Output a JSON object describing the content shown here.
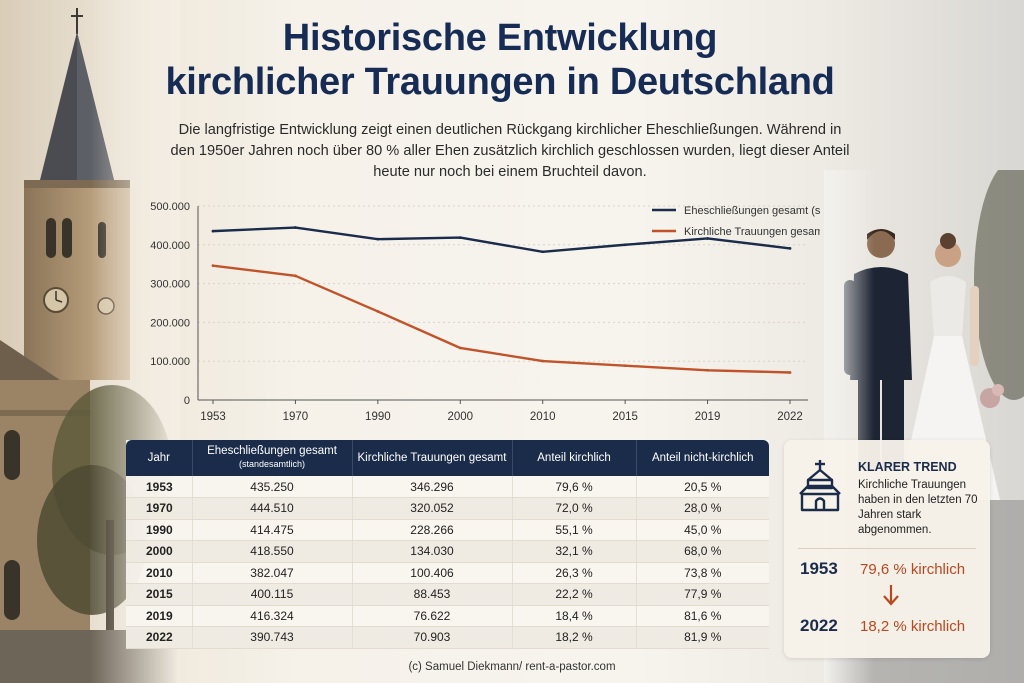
{
  "header": {
    "title_line1": "Historische Entwicklung",
    "title_line2": "kirchlicher Trauungen in Deutschland",
    "subtitle": "Die langfristige Entwicklung zeigt einen deutlichen Rückgang kirchlicher Eheschließungen. Während in den 1950er Jahren noch über 80 % aller Ehen zusätzlich kirchlich geschlossen wurden, liegt dieser Anteil heute nur noch bei einem Bruchteil davon."
  },
  "chart_data": {
    "type": "line",
    "x": [
      "1953",
      "1970",
      "1990",
      "2000",
      "2010",
      "2015",
      "2019",
      "2022"
    ],
    "series": [
      {
        "name": "Eheschließungen gesamt (standesamtlich)",
        "color": "#1b2c4b",
        "values": [
          435250,
          444510,
          414475,
          418550,
          382047,
          400115,
          416324,
          390743
        ]
      },
      {
        "name": "Kirchliche Trauungen gesamt",
        "color": "#c0532a",
        "values": [
          346296,
          320052,
          228266,
          134030,
          100406,
          88453,
          76622,
          70903
        ]
      }
    ],
    "ylim": [
      0,
      500000
    ],
    "yticks": [
      "500.000",
      "400.000",
      "300.000",
      "200.000",
      "100.000",
      "0"
    ],
    "grid": true,
    "legend": "top-right"
  },
  "table": {
    "headers": {
      "year": "Jahr",
      "total": "Eheschließungen gesamt",
      "total_note": "(standesamtlich)",
      "church": "Kirchliche Trauungen gesamt",
      "share_church": "Anteil kirchlich",
      "share_non_church": "Anteil nicht-kirchlich"
    },
    "rows": [
      {
        "year": "1953",
        "total": "435.250",
        "church": "346.296",
        "share": "79,6 %",
        "non": "20,5 %"
      },
      {
        "year": "1970",
        "total": "444.510",
        "church": "320.052",
        "share": "72,0 %",
        "non": "28,0 %"
      },
      {
        "year": "1990",
        "total": "414.475",
        "church": "228.266",
        "share": "55,1 %",
        "non": "45,0 %"
      },
      {
        "year": "2000",
        "total": "418.550",
        "church": "134.030",
        "share": "32,1 %",
        "non": "68,0 %"
      },
      {
        "year": "2010",
        "total": "382.047",
        "church": "100.406",
        "share": "26,3 %",
        "non": "73,8 %"
      },
      {
        "year": "2015",
        "total": "400.115",
        "church": "88.453",
        "share": "22,2 %",
        "non": "77,9 %"
      },
      {
        "year": "2019",
        "total": "416.324",
        "church": "76.622",
        "share": "18,4 %",
        "non": "81,6 %"
      },
      {
        "year": "2022",
        "total": "390.743",
        "church": "70.903",
        "share": "18,2 %",
        "non": "81,9 %"
      }
    ]
  },
  "trend": {
    "icon": "church-icon",
    "heading": "KLARER TREND",
    "text": "Kirchliche Trauungen haben in den letzten 70 Jahren stark abgenommen.",
    "from_year": "1953",
    "from_value": "79,6 % kirchlich",
    "to_year": "2022",
    "to_value": "18,2 % kirchlich",
    "accent": "#b8491f"
  },
  "footer": {
    "copyright": "(c) Samuel Diekmann/ rent-a-pastor.com"
  }
}
